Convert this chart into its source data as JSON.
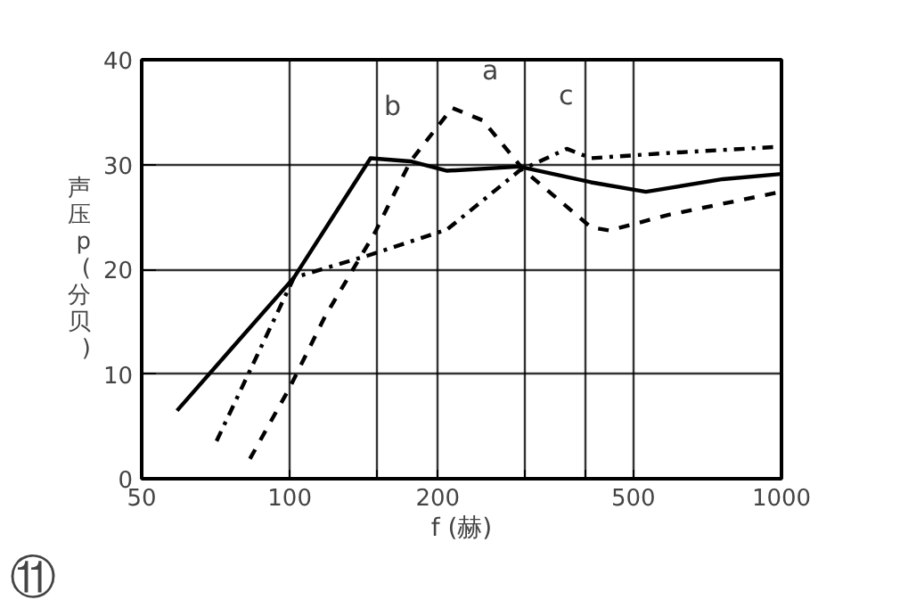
{
  "chart_data": {
    "type": "line",
    "ylabel": "声压 p (分贝)",
    "xlabel": "f (赫)",
    "log": "x",
    "grid": true,
    "xlim": [
      50,
      1000
    ],
    "ylim": [
      0,
      40
    ],
    "xticks": [
      50,
      100,
      {
        "value": 150,
        "label": null
      },
      200,
      {
        "value": 300,
        "label": null
      },
      {
        "value": 400,
        "label": null
      },
      500,
      1000
    ],
    "yticks": [
      0,
      10,
      20,
      30,
      40
    ],
    "series": [
      {
        "color": "#000000",
        "line_style": "dashed",
        "x": [
          83,
          100,
          118,
          149,
          176,
          214,
          247,
          300,
          410,
          447,
          590,
          1000
        ],
        "values": [
          1.9,
          8.7,
          15.5,
          23.5,
          30.3,
          35.4,
          34.2,
          29.4,
          24.0,
          23.7,
          25.2,
          27.4
        ]
      },
      {
        "color": "#000000",
        "line_style": "solid",
        "x": [
          59,
          102,
          146,
          176,
          209,
          293,
          410,
          530,
          760,
          1000
        ],
        "values": [
          6.5,
          19.2,
          30.6,
          30.3,
          29.4,
          29.8,
          28.3,
          27.4,
          28.6,
          29.1
        ]
      },
      {
        "color": "#000000",
        "line_style": "dashdot",
        "x": [
          71,
          102,
          144,
          209,
          293,
          366,
          410,
          590,
          1000
        ],
        "values": [
          3.6,
          19.2,
          21.3,
          23.8,
          29.4,
          31.5,
          30.6,
          31.1,
          31.7
        ]
      }
    ],
    "annotations": [
      "a",
      "b",
      "c",
      "⑪"
    ]
  }
}
